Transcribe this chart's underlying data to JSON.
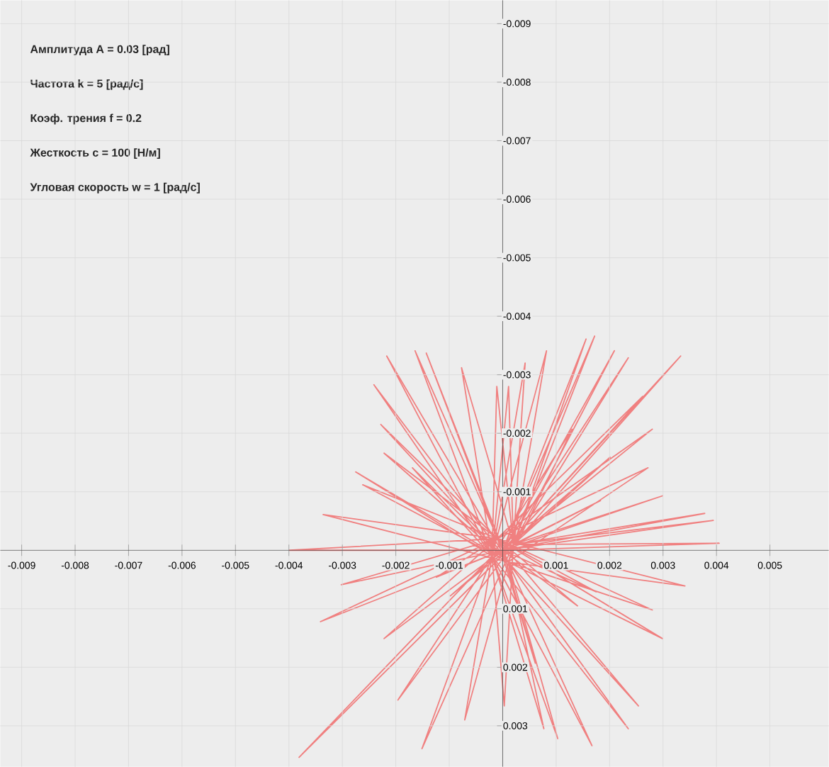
{
  "chart_data": {
    "type": "line",
    "annotations": [
      "Амплитуда A = 0.03 [рад]",
      "Частота k = 5 [рад/с]",
      "Коэф. трения f = 0.2",
      "Жесткость c = 100 [Н/м]",
      "Угловая скорость w = 1 [рад/с]"
    ],
    "xlim": [
      -0.0094,
      0.0061
    ],
    "ylim": [
      0.0037,
      -0.0094
    ],
    "xticks": [
      -0.009,
      -0.008,
      -0.007,
      -0.006,
      -0.005,
      -0.004,
      -0.003,
      -0.002,
      -0.001,
      0.001,
      0.002,
      0.003,
      0.004,
      0.005
    ],
    "yticks": [
      -0.009,
      -0.008,
      -0.007,
      -0.006,
      -0.005,
      -0.004,
      -0.003,
      -0.002,
      -0.001,
      0.001,
      0.002,
      0.003
    ],
    "grid": true,
    "marker": "none",
    "line_style": "solid",
    "series": [
      {
        "color": "#f08080",
        "x": [
          0,
          0.00333,
          0.0002,
          -0.00381,
          -0.0002,
          -0.00164,
          0.0001,
          0.00254,
          -0.0001,
          -0.00399,
          0,
          0.00405,
          0.0002,
          0.00042,
          -0.0002,
          0.00077,
          0.0001,
          -0.00228,
          -0.0001,
          0.00175,
          0,
          0.00172,
          0.0002,
          -0.00196,
          -0.0002,
          -0.00217,
          0.0001,
          0.00299,
          -0.0001,
          -0.00341,
          0,
          0.00394,
          0.0002,
          0.00011,
          -0.0002,
          0.00103,
          0.0001,
          -0.00222,
          -0.0001,
          0.0014,
          0,
          0.00156,
          0.0002,
          -0.00151,
          -0.0002,
          -0.00241,
          0.0001,
          0.0028,
          -0.0001,
          -0.00302,
          0,
          0.00378,
          0.0002,
          -0.00011,
          -0.0002,
          0.00167,
          0.0001,
          -0.00262,
          -0.0001,
          0.00061,
          0,
          0.00209,
          0.0002,
          -0.00071,
          -0.0002,
          -0.00169,
          0.0001,
          0.00341,
          -0.0001,
          -0.00222,
          0,
          0.00299,
          0.0002,
          -0.00077,
          -0.0002,
          0.00235,
          0.0001,
          -0.00336,
          -0.0001,
          -0.00124,
          0,
          0.00235,
          0.0002,
          3e-05,
          -0.0002,
          -0.00275,
          0.0001,
          0.00272,
          -0.0001,
          0.00262,
          0,
          -0.00098,
          0.0002,
          0.00082,
          -0.0002,
          0.00235,
          0.0001,
          -0.00143,
          -0.0001,
          0.0028,
          0,
          0.00201,
          0.0002,
          0.00183,
          -0.0002,
          0.0013,
          0.0001
        ],
        "values": [
          0,
          -0.00332,
          -0.0001,
          0.00354,
          0.0001,
          -0.00341,
          0.0002,
          0.00266,
          -0.0002,
          0,
          0,
          -0.00012,
          -0.0001,
          -0.0032,
          0.0001,
          0.00305,
          0.0002,
          -0.00215,
          -0.0002,
          0.00071,
          0,
          -0.00366,
          -0.0001,
          0.00256,
          0.0001,
          -0.00332,
          0.0002,
          0.00151,
          -0.0002,
          0.00122,
          0,
          -0.00051,
          -0.0001,
          -0.0028,
          0.0001,
          0.00322,
          0.0002,
          -0.00166,
          -0.0002,
          0.00095,
          0,
          -0.00361,
          -0.0001,
          0.00339,
          0.0001,
          -0.00283,
          0.0002,
          0.00102,
          -0.0002,
          0.00059,
          0,
          -0.00063,
          -0.0001,
          -0.0028,
          0.0001,
          0.00334,
          0.0002,
          -0.00112,
          -0.0002,
          0.00193,
          0,
          -0.00341,
          -0.0001,
          0.0029,
          0.0001,
          -0.00141,
          0.0002,
          0.00061,
          -0.0002,
          0.00151,
          0,
          -0.00093,
          -0.0001,
          -0.00312,
          0.0001,
          0.00305,
          0.0002,
          -0.00061,
          -0.0002,
          0.00046,
          0,
          -0.00329,
          -0.0001,
          0.00266,
          0.0001,
          -0.00134,
          0.0002,
          -0.00141,
          -0.0002,
          -0.00263,
          0,
          0.00078,
          -0.0001,
          -0.00341,
          0.0001,
          0.00305,
          0.0002,
          -0.00337,
          -0.0002,
          -0.00207,
          0,
          -0.00159,
          -0.0001,
          -0.00085,
          0.0001,
          -0.00207,
          0.0002
        ]
      }
    ]
  }
}
